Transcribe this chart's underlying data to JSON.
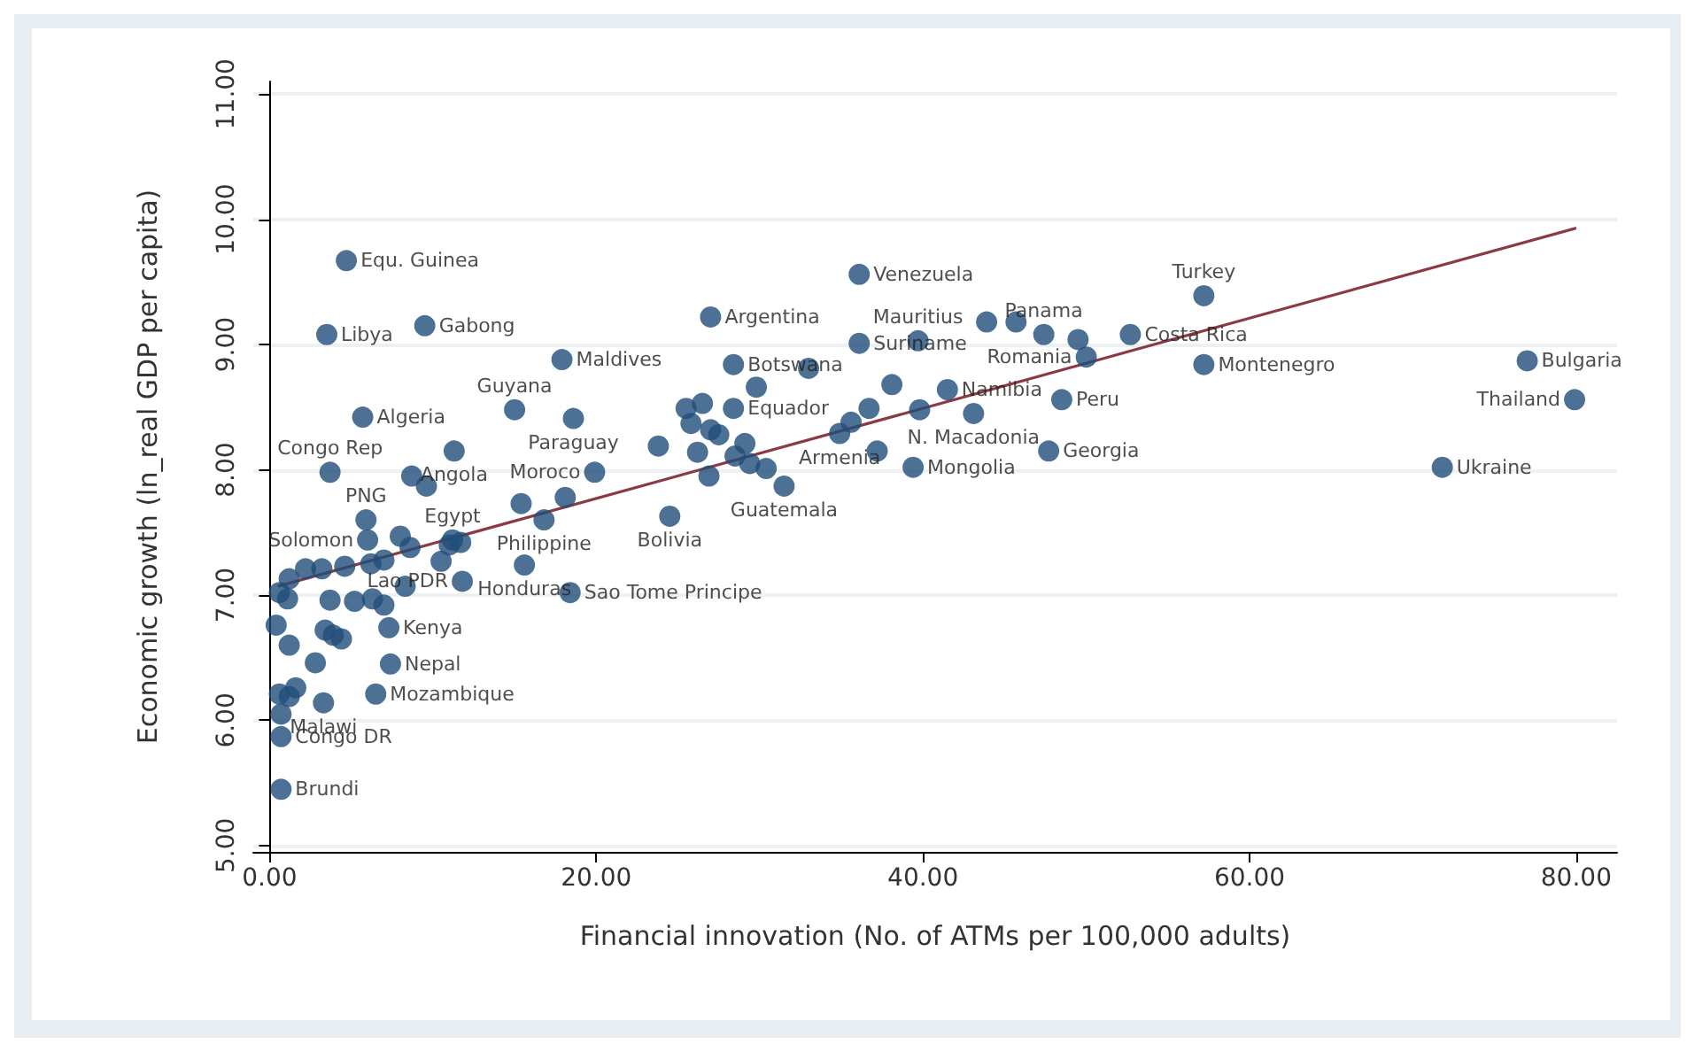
{
  "chart_data": {
    "type": "scatter",
    "xlabel": "Financial innovation (No. of ATMs per 100,000 adults)",
    "ylabel": "Economic growth (ln_real GDP per capita)",
    "xlim": [
      -1,
      82.5
    ],
    "ylim": [
      4.95,
      11.1
    ],
    "xticks": [
      {
        "value": 0,
        "label": "0.00"
      },
      {
        "value": 20,
        "label": "20.00"
      },
      {
        "value": 40,
        "label": "40.00"
      },
      {
        "value": 60,
        "label": "60.00"
      },
      {
        "value": 80,
        "label": "80.00"
      }
    ],
    "yticks": [
      {
        "value": 5,
        "label": "5.00"
      },
      {
        "value": 6,
        "label": "6.00"
      },
      {
        "value": 7,
        "label": "7.00"
      },
      {
        "value": 8,
        "label": "8.00"
      },
      {
        "value": 9,
        "label": "9.00"
      },
      {
        "value": 10,
        "label": "10.00"
      },
      {
        "value": 11,
        "label": "11.00"
      }
    ],
    "grid": "y",
    "marker": "circle",
    "series": [
      {
        "color": "#1f4e79",
        "x": [
          4.7,
          3.5,
          9.5,
          5.7,
          15.0,
          17.9,
          18.6,
          3.7,
          11.3,
          19.9,
          27.0,
          36.1,
          28.4,
          36.1,
          39.7,
          47.4,
          52.7,
          57.2,
          50.0,
          48.5,
          57.2,
          41.5,
          43.1,
          47.7,
          39.4,
          34.9,
          31.5,
          28.4,
          77.0,
          79.9,
          71.8,
          24.5,
          16.8,
          15.6,
          18.4,
          11.8,
          11.2,
          5.9,
          6.0,
          7.3,
          7.4,
          6.5,
          3.3,
          0.7,
          0.7,
          43.9,
          45.7,
          49.5,
          39.8,
          38.1,
          36.7,
          35.6,
          37.2,
          33.0,
          29.8,
          25.5,
          26.5,
          25.8,
          27.0,
          27.5,
          29.1,
          28.5,
          29.4,
          30.4,
          26.2,
          26.9,
          23.8,
          8.7,
          9.6,
          15.4,
          18.1,
          8.0,
          8.6,
          11.7,
          10.5,
          1.2,
          2.2,
          3.2,
          4.6,
          6.2,
          7.0,
          8.3,
          0.6,
          1.1,
          3.7,
          5.2,
          6.3,
          7.0,
          0.4,
          3.4,
          3.9,
          4.4,
          1.2,
          2.8,
          0.6,
          1.6,
          1.2,
          0.7,
          11.0
        ],
        "values": [
          9.67,
          9.08,
          9.15,
          8.42,
          8.48,
          8.88,
          8.41,
          7.98,
          8.15,
          7.98,
          9.22,
          9.56,
          8.84,
          9.01,
          9.03,
          9.08,
          9.08,
          9.39,
          8.9,
          8.56,
          8.84,
          8.64,
          8.45,
          8.15,
          8.02,
          8.29,
          7.87,
          8.49,
          8.87,
          8.56,
          8.02,
          7.63,
          7.6,
          7.24,
          7.02,
          7.11,
          7.44,
          7.6,
          7.44,
          6.74,
          6.45,
          6.21,
          6.14,
          5.87,
          5.45,
          9.18,
          9.18,
          9.04,
          8.48,
          8.68,
          8.49,
          8.38,
          8.15,
          8.81,
          8.66,
          8.49,
          8.53,
          8.37,
          8.32,
          8.28,
          8.21,
          8.11,
          8.05,
          8.01,
          8.14,
          7.95,
          8.19,
          7.95,
          7.87,
          7.73,
          7.78,
          7.47,
          7.38,
          7.42,
          7.27,
          7.13,
          7.21,
          7.21,
          7.23,
          7.25,
          7.28,
          7.07,
          7.02,
          6.97,
          6.96,
          6.95,
          6.97,
          6.92,
          6.76,
          6.72,
          6.68,
          6.65,
          6.6,
          6.46,
          6.21,
          6.26,
          6.19,
          6.05,
          7.4
        ]
      },
      {
        "type": "line",
        "marker": "none",
        "color": "#8b3a45",
        "x": [
          0.5,
          80
        ],
        "values": [
          7.07,
          9.93
        ]
      }
    ],
    "annotations": [
      {
        "text": "Equ. Guinea",
        "x": 4.7,
        "y": 9.67
      },
      {
        "text": "Libya",
        "x": 3.5,
        "y": 9.08
      },
      {
        "text": "Gabong",
        "x": 9.5,
        "y": 9.15
      },
      {
        "text": "Algeria",
        "x": 5.7,
        "y": 8.42
      },
      {
        "text": "Guyana",
        "x": 15.0,
        "y": 8.48
      },
      {
        "text": "Maldives",
        "x": 17.9,
        "y": 8.88
      },
      {
        "text": "Paraguay",
        "x": 18.6,
        "y": 8.41
      },
      {
        "text": "Congo Rep",
        "x": 3.7,
        "y": 7.98
      },
      {
        "text": "Angola",
        "x": 11.3,
        "y": 8.15
      },
      {
        "text": "Moroco",
        "x": 19.9,
        "y": 7.98
      },
      {
        "text": "Argentina",
        "x": 27.0,
        "y": 9.22
      },
      {
        "text": "Venezuela",
        "x": 36.1,
        "y": 9.56
      },
      {
        "text": "Botswana",
        "x": 28.4,
        "y": 8.84
      },
      {
        "text": "Suriname",
        "x": 36.1,
        "y": 9.01
      },
      {
        "text": "Mauritius",
        "x": 39.7,
        "y": 9.03
      },
      {
        "text": "Panama",
        "x": 47.4,
        "y": 9.08
      },
      {
        "text": "Costa Rica",
        "x": 52.7,
        "y": 9.08
      },
      {
        "text": "Turkey",
        "x": 57.2,
        "y": 9.39
      },
      {
        "text": "Romania",
        "x": 50.0,
        "y": 8.9
      },
      {
        "text": "Peru",
        "x": 48.5,
        "y": 8.56
      },
      {
        "text": "Montenegro",
        "x": 57.2,
        "y": 8.84
      },
      {
        "text": "Namibia",
        "x": 41.5,
        "y": 8.64
      },
      {
        "text": "N. Macadonia",
        "x": 43.1,
        "y": 8.45
      },
      {
        "text": "Georgia",
        "x": 47.7,
        "y": 8.15
      },
      {
        "text": "Mongolia",
        "x": 39.4,
        "y": 8.02
      },
      {
        "text": "Armenia",
        "x": 34.9,
        "y": 8.29
      },
      {
        "text": "Guatemala",
        "x": 31.5,
        "y": 7.87
      },
      {
        "text": "Equador",
        "x": 28.4,
        "y": 8.49
      },
      {
        "text": "Bulgaria",
        "x": 77.0,
        "y": 8.87
      },
      {
        "text": "Thailand",
        "x": 79.9,
        "y": 8.56
      },
      {
        "text": "Ukraine",
        "x": 71.8,
        "y": 8.02
      },
      {
        "text": "Bolivia",
        "x": 24.5,
        "y": 7.63
      },
      {
        "text": "Philippine",
        "x": 16.8,
        "y": 7.6
      },
      {
        "text": "Honduras",
        "x": 15.6,
        "y": 7.24
      },
      {
        "text": "Sao Tome Principe",
        "x": 18.4,
        "y": 7.02
      },
      {
        "text": "Lao PDR",
        "x": 11.8,
        "y": 7.11
      },
      {
        "text": "Egypt",
        "x": 11.2,
        "y": 7.44
      },
      {
        "text": "PNG",
        "x": 5.9,
        "y": 7.6
      },
      {
        "text": "Solomon",
        "x": 6.0,
        "y": 7.44
      },
      {
        "text": "Kenya",
        "x": 7.3,
        "y": 6.74
      },
      {
        "text": "Nepal",
        "x": 7.4,
        "y": 6.45
      },
      {
        "text": "Mozambique",
        "x": 6.5,
        "y": 6.21
      },
      {
        "text": "Malawi",
        "x": 3.3,
        "y": 6.14
      },
      {
        "text": "Congo DR",
        "x": 0.7,
        "y": 5.87
      },
      {
        "text": "Brundi",
        "x": 0.7,
        "y": 5.45
      }
    ]
  }
}
